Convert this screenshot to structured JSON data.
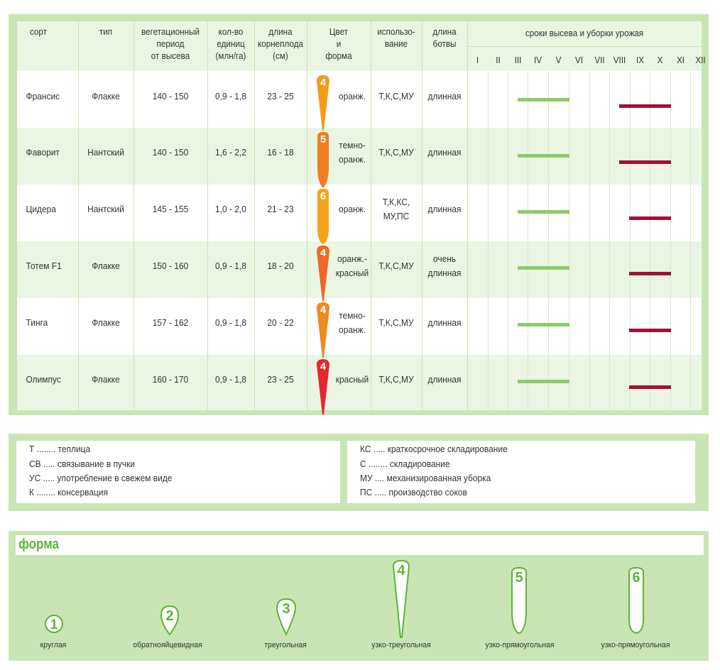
{
  "table": {
    "headers": {
      "variety": "сорт",
      "type": "тип",
      "period": "вегетационный\nпериод\nот высева",
      "units": "кол-во\nединиц\n(млн/га)",
      "length": "длина\nкорнеплода\n(см)",
      "color_shape": "Цвет\nи\nформа",
      "usage": "использо-\nвание",
      "tops": "длина\nботвы",
      "schedule": "сроки высева и уборки урожая"
    },
    "months": [
      "I",
      "II",
      "III",
      "IV",
      "V",
      "VI",
      "VII",
      "VIII",
      "IX",
      "X",
      "XI",
      "XII"
    ],
    "rows": [
      {
        "variety": "Франсис",
        "type": "Флакке",
        "period": "140 - 150",
        "units": "0,9 - 1,8",
        "length": "23 - 25",
        "shape_number": "4",
        "carrot_color": "#f39c1a",
        "color": "оранж.",
        "usage": "Т,К,С,МУ",
        "tops": "длинная"
      },
      {
        "variety": "Фаворит",
        "type": "Нантский",
        "period": "140 - 150",
        "units": "1,6 - 2,2",
        "length": "16 - 18",
        "shape_number": "5",
        "carrot_color": "#ef7d22",
        "color": "темно-\nоранж.",
        "usage": "Т,К,С,МУ",
        "tops": "длинная"
      },
      {
        "variety": "Цидера",
        "type": "Нантский",
        "period": "145 - 155",
        "units": "1,0 - 2,0",
        "length": "21 - 23",
        "shape_number": "6",
        "carrot_color": "#f5a31c",
        "color": "оранж.",
        "usage": "Т,К,КС,\nМУ,ПС",
        "tops": "длинная"
      },
      {
        "variety": "Тотем F1",
        "type": "Флакке",
        "period": "150 - 160",
        "units": "0,9 - 1,8",
        "length": "18 - 20",
        "shape_number": "4",
        "carrot_color": "#ec6a26",
        "color": "оранж.-\nкрасный",
        "usage": "Т,К,С,МУ",
        "tops": "очень\nдлинная"
      },
      {
        "variety": "Тинга",
        "type": "Флакке",
        "period": "157 - 162",
        "units": "0,9 - 1,8",
        "length": "20 - 22",
        "shape_number": "4",
        "carrot_color": "#ef8a1f",
        "color": "темно-\nоранж.",
        "usage": "Т,К,С,МУ",
        "tops": "длинная"
      },
      {
        "variety": "Олимпус",
        "type": "Флакке",
        "period": "160 - 170",
        "units": "0,9 - 1,8",
        "length": "23 - 25",
        "shape_number": "4",
        "carrot_color": "#e8262b",
        "color": "красный",
        "usage": "Т,К,С,МУ",
        "tops": "длинная"
      }
    ],
    "sowing_color": "#8ecb6a",
    "harvest_color": "#a31037"
  },
  "legend": {
    "left": [
      "Т ........ теплица",
      "СВ ..... связывание в пучки",
      "УС ..... употребление в свежем виде",
      "К ........ консервация"
    ],
    "right": [
      "КС ..... краткосрочное складирование",
      "С ........ складирование",
      "МУ .... механизированная уборка",
      "ПС ..... производство соков"
    ]
  },
  "shapes": {
    "title": "форма",
    "items": [
      {
        "number": "1",
        "label": "круглая"
      },
      {
        "number": "2",
        "label": "обратнояйцевидная"
      },
      {
        "number": "3",
        "label": "треугольная"
      },
      {
        "number": "4",
        "label": "узко-треугольная"
      },
      {
        "number": "5",
        "label": "узко-прямоугольная"
      },
      {
        "number": "6",
        "label": "узко-прямоугольная"
      }
    ],
    "outline_color": "#5db534"
  }
}
